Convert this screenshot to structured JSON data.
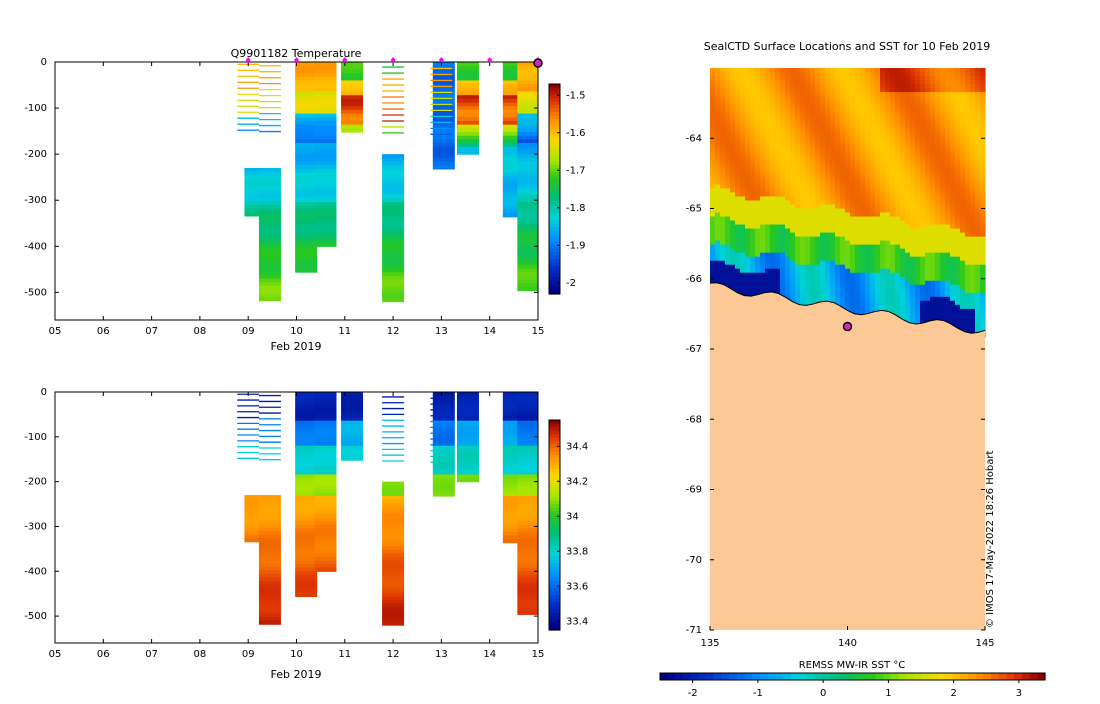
{
  "chart_data": [
    {
      "type": "heatmap",
      "title": "Q9901182  Temperature",
      "xlabel": "Feb 2019",
      "ylabel": "",
      "xlim": [
        5,
        15
      ],
      "ylim": [
        0,
        -560
      ],
      "xticks": [
        "05",
        "06",
        "07",
        "08",
        "09",
        "10",
        "11",
        "12",
        "13",
        "14",
        "15"
      ],
      "yticks": [
        0,
        -100,
        -200,
        -300,
        -400,
        -500
      ],
      "colorbar": {
        "ticks": [
          -1.5,
          -1.6,
          -1.7,
          -1.8,
          -1.9,
          -2
        ],
        "range": [
          -2.03,
          -1.47
        ]
      },
      "surface_markers_day": [
        9,
        10,
        11,
        12,
        13,
        14,
        15
      ],
      "profiles": [
        {
          "day": 9.15,
          "bottom": 330,
          "kind": "deep"
        },
        {
          "day": 9.45,
          "bottom": 515,
          "kind": "deep"
        },
        {
          "day": 10.2,
          "bottom": 450,
          "kind": "deep"
        },
        {
          "day": 10.6,
          "bottom": 395,
          "kind": "deep"
        },
        {
          "day": 11.15,
          "bottom": 145,
          "kind": "warm"
        },
        {
          "day": 12.0,
          "bottom": 520,
          "kind": "deep"
        },
        {
          "day": 13.05,
          "bottom": 225,
          "kind": "cold"
        },
        {
          "day": 13.55,
          "bottom": 200,
          "kind": "warm"
        },
        {
          "day": 14.5,
          "bottom": 335,
          "kind": "warm"
        },
        {
          "day": 14.8,
          "bottom": 490,
          "kind": "deep"
        }
      ]
    },
    {
      "type": "heatmap",
      "title": "",
      "xlabel": "Feb 2019",
      "ylabel": "",
      "xlim": [
        5,
        15
      ],
      "ylim": [
        0,
        -560
      ],
      "xticks": [
        "05",
        "06",
        "07",
        "08",
        "09",
        "10",
        "11",
        "12",
        "13",
        "14",
        "15"
      ],
      "yticks": [
        0,
        -100,
        -200,
        -300,
        -400,
        -500
      ],
      "colorbar": {
        "ticks": [
          34.4,
          34.2,
          34,
          33.8,
          33.6,
          33.4
        ],
        "range": [
          33.35,
          34.55
        ]
      }
    },
    {
      "type": "heatmap",
      "title": "SealCTD Surface Locations and SST for 10 Feb 2019",
      "xlabel": "",
      "ylabel": "",
      "xlim": [
        135,
        145
      ],
      "ylim": [
        -71,
        -63
      ],
      "xticks": [
        135,
        140,
        145
      ],
      "yticks": [
        -64,
        -65,
        -66,
        -67,
        -68,
        -69,
        -70,
        -71
      ],
      "colorbar_label": "REMSS MW-IR SST °C",
      "colorbar_ticks": [
        -2,
        -1,
        0,
        1,
        2,
        3
      ],
      "colorbar_range": [
        -2.5,
        3.4
      ],
      "seal_location": {
        "lon": 140,
        "lat": -66.68
      },
      "credit": "© IMOS 17-May-2022 18:26 Hobart"
    }
  ]
}
